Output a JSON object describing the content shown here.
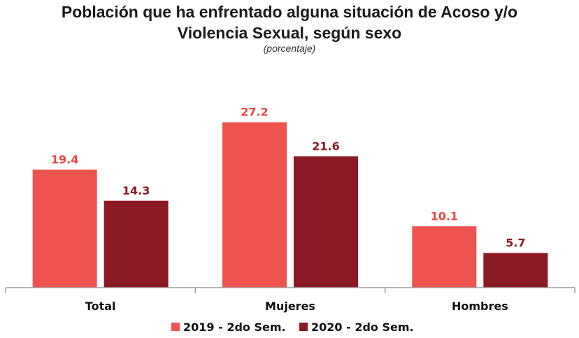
{
  "chart_data": {
    "type": "bar",
    "title_line1": "Población que ha enfrentado alguna situación de Acoso y/o",
    "title_line2": "Violencia Sexual, según sexo",
    "subtitle": "(porcentaje)",
    "categories": [
      "Total",
      "Mujeres",
      "Hombres"
    ],
    "series": [
      {
        "name": "2019 - 2do Sem.",
        "values": [
          19.4,
          27.2,
          10.1
        ],
        "color": "#ef5350",
        "label_color": "#ef4444"
      },
      {
        "name": "2020 - 2do Sem.",
        "values": [
          14.3,
          21.6,
          5.7
        ],
        "color": "#8b1a24",
        "label_color": "#8b1a24"
      }
    ],
    "ylim": [
      0,
      33.5
    ],
    "legend_position": "bottom",
    "grid": false
  }
}
